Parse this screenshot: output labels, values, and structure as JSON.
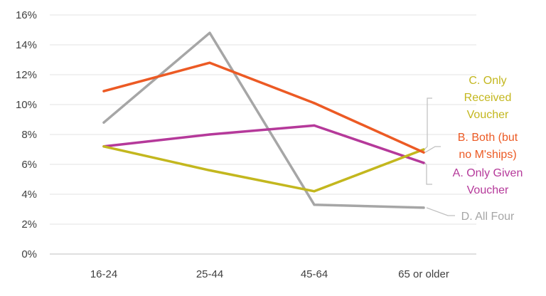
{
  "chart_data": {
    "type": "line",
    "title": "",
    "xlabel": "",
    "ylabel": "",
    "categories": [
      "16-24",
      "25-44",
      "45-64",
      "65 or older"
    ],
    "ylim": [
      0,
      16
    ],
    "yticks": [
      "0%",
      "2%",
      "4%",
      "6%",
      "8%",
      "10%",
      "12%",
      "14%",
      "16%"
    ],
    "grid": true,
    "series": [
      {
        "name": "A. Only Given Voucher",
        "label_lines": [
          "A. Only Given",
          "Voucher"
        ],
        "color": "#b5399a",
        "values": [
          7.2,
          8.0,
          8.6,
          6.1
        ]
      },
      {
        "name": "B. Both (but no M'ships)",
        "label_lines": [
          "B. Both (but",
          "no M'ships)"
        ],
        "color": "#ec5a24",
        "values": [
          10.9,
          12.8,
          10.1,
          6.8
        ]
      },
      {
        "name": "C. Only Received Voucher",
        "label_lines": [
          "C. Only",
          "Received",
          "Voucher"
        ],
        "color": "#c3b71e",
        "values": [
          7.2,
          5.6,
          4.2,
          7.0
        ]
      },
      {
        "name": "D. All Four",
        "label_lines": [
          "D. All Four"
        ],
        "color": "#a6a6a6",
        "values": [
          8.8,
          14.8,
          3.3,
          3.1
        ]
      }
    ]
  }
}
